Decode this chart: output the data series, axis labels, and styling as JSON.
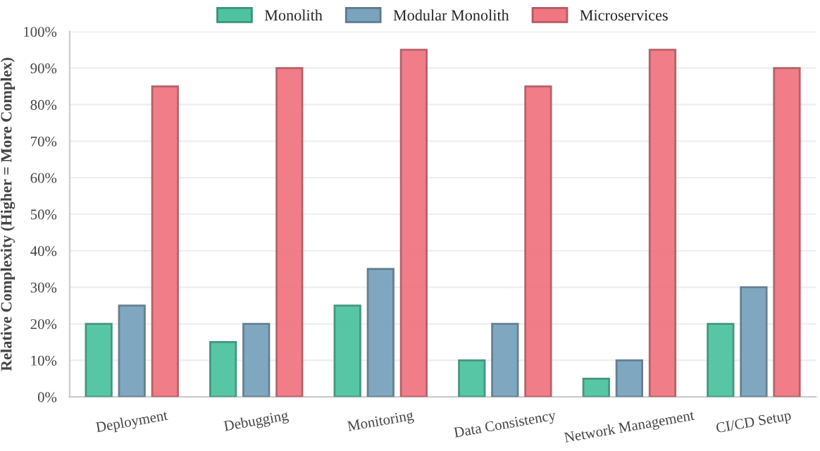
{
  "chart_data": {
    "type": "bar",
    "ylabel": "Relative Complexity (Higher = More Complex)",
    "categories": [
      "Deployment",
      "Debugging",
      "Monitoring",
      "Data Consistency",
      "Network Management",
      "CI/CD Setup"
    ],
    "series": [
      {
        "name": "Monolith",
        "color": "#4fc3a1",
        "values": [
          20,
          15,
          25,
          10,
          5,
          20
        ]
      },
      {
        "name": "Modular Monolith",
        "color": "#7aa3bd",
        "values": [
          25,
          20,
          35,
          20,
          10,
          30
        ]
      },
      {
        "name": "Microservices",
        "color": "#f07781",
        "values": [
          85,
          90,
          95,
          85,
          95,
          90
        ]
      }
    ],
    "ylim": [
      0,
      100
    ],
    "yticks": [
      {
        "value": 0,
        "label": "0%"
      },
      {
        "value": 10,
        "label": "10%"
      },
      {
        "value": 20,
        "label": "20%"
      },
      {
        "value": 30,
        "label": "30%"
      },
      {
        "value": 40,
        "label": "40%"
      },
      {
        "value": 50,
        "label": "50%"
      },
      {
        "value": 60,
        "label": "60%"
      },
      {
        "value": 70,
        "label": "70%"
      },
      {
        "value": 80,
        "label": "80%"
      },
      {
        "value": 90,
        "label": "90%"
      },
      {
        "value": 100,
        "label": "100%"
      }
    ],
    "grid": "y",
    "legend": "top"
  }
}
